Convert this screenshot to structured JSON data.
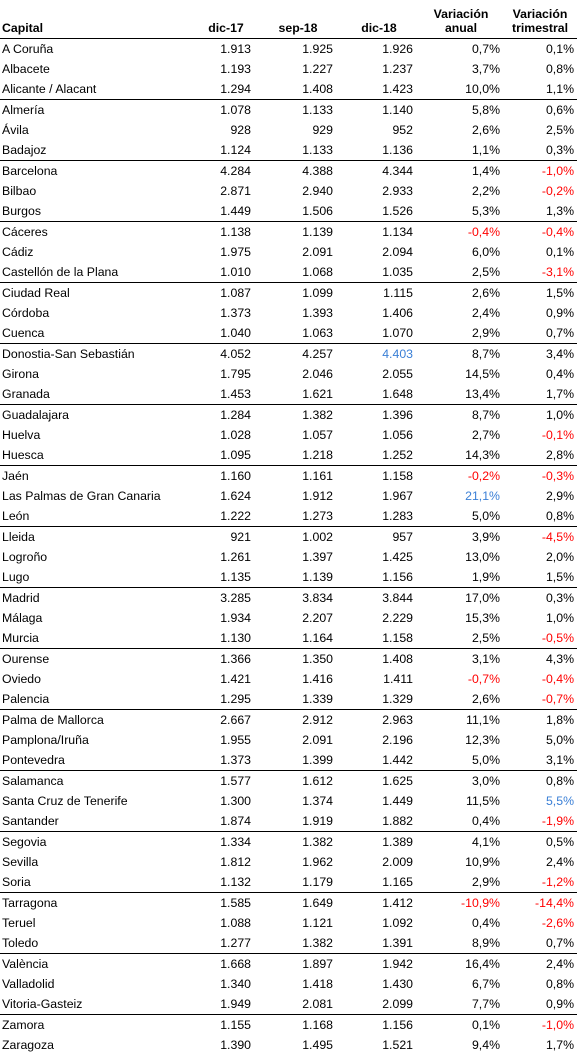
{
  "headers": {
    "capital": "Capital",
    "dic17": "dic-17",
    "sep18": "sep-18",
    "dic18": "dic-18",
    "var_anual": [
      "Variación",
      "anual"
    ],
    "var_trimestral": [
      "Variación",
      "trimestral"
    ]
  },
  "colors": {
    "negative": "#ff0000",
    "highlight": "#3a7fd6"
  },
  "rows": [
    {
      "capital": "A Coruña",
      "dic17": "1.913",
      "sep18": "1.925",
      "dic18": "1.926",
      "anual": "0,7%",
      "trim": "0,1%",
      "group_start": true
    },
    {
      "capital": "Albacete",
      "dic17": "1.193",
      "sep18": "1.227",
      "dic18": "1.237",
      "anual": "3,7%",
      "trim": "0,8%"
    },
    {
      "capital": "Alicante / Alacant",
      "dic17": "1.294",
      "sep18": "1.408",
      "dic18": "1.423",
      "anual": "10,0%",
      "trim": "1,1%"
    },
    {
      "capital": "Almería",
      "dic17": "1.078",
      "sep18": "1.133",
      "dic18": "1.140",
      "anual": "5,8%",
      "trim": "0,6%",
      "group_start": true
    },
    {
      "capital": "Ávila",
      "dic17": "928",
      "sep18": "929",
      "dic18": "952",
      "anual": "2,6%",
      "trim": "2,5%"
    },
    {
      "capital": "Badajoz",
      "dic17": "1.124",
      "sep18": "1.133",
      "dic18": "1.136",
      "anual": "1,1%",
      "trim": "0,3%"
    },
    {
      "capital": "Barcelona",
      "dic17": "4.284",
      "sep18": "4.388",
      "dic18": "4.344",
      "anual": "1,4%",
      "trim": "-1,0%",
      "trim_neg": true,
      "group_start": true
    },
    {
      "capital": "Bilbao",
      "dic17": "2.871",
      "sep18": "2.940",
      "dic18": "2.933",
      "anual": "2,2%",
      "trim": "-0,2%",
      "trim_neg": true
    },
    {
      "capital": "Burgos",
      "dic17": "1.449",
      "sep18": "1.506",
      "dic18": "1.526",
      "anual": "5,3%",
      "trim": "1,3%"
    },
    {
      "capital": "Cáceres",
      "dic17": "1.138",
      "sep18": "1.139",
      "dic18": "1.134",
      "anual": "-0,4%",
      "trim": "-0,4%",
      "anual_neg": true,
      "trim_neg": true,
      "group_start": true
    },
    {
      "capital": "Cádiz",
      "dic17": "1.975",
      "sep18": "2.091",
      "dic18": "2.094",
      "anual": "6,0%",
      "trim": "0,1%"
    },
    {
      "capital": "Castellón de la Plana",
      "dic17": "1.010",
      "sep18": "1.068",
      "dic18": "1.035",
      "anual": "2,5%",
      "trim": "-3,1%",
      "trim_neg": true
    },
    {
      "capital": "Ciudad Real",
      "dic17": "1.087",
      "sep18": "1.099",
      "dic18": "1.115",
      "anual": "2,6%",
      "trim": "1,5%",
      "group_start": true
    },
    {
      "capital": "Córdoba",
      "dic17": "1.373",
      "sep18": "1.393",
      "dic18": "1.406",
      "anual": "2,4%",
      "trim": "0,9%"
    },
    {
      "capital": "Cuenca",
      "dic17": "1.040",
      "sep18": "1.063",
      "dic18": "1.070",
      "anual": "2,9%",
      "trim": "0,7%"
    },
    {
      "capital": "Donostia-San Sebastián",
      "dic17": "4.052",
      "sep18": "4.257",
      "dic18": "4.403",
      "anual": "8,7%",
      "trim": "3,4%",
      "dic18_hl": true,
      "group_start": true
    },
    {
      "capital": "Girona",
      "dic17": "1.795",
      "sep18": "2.046",
      "dic18": "2.055",
      "anual": "14,5%",
      "trim": "0,4%"
    },
    {
      "capital": "Granada",
      "dic17": "1.453",
      "sep18": "1.621",
      "dic18": "1.648",
      "anual": "13,4%",
      "trim": "1,7%"
    },
    {
      "capital": "Guadalajara",
      "dic17": "1.284",
      "sep18": "1.382",
      "dic18": "1.396",
      "anual": "8,7%",
      "trim": "1,0%",
      "group_start": true
    },
    {
      "capital": "Huelva",
      "dic17": "1.028",
      "sep18": "1.057",
      "dic18": "1.056",
      "anual": "2,7%",
      "trim": "-0,1%",
      "trim_neg": true
    },
    {
      "capital": "Huesca",
      "dic17": "1.095",
      "sep18": "1.218",
      "dic18": "1.252",
      "anual": "14,3%",
      "trim": "2,8%"
    },
    {
      "capital": "Jaén",
      "dic17": "1.160",
      "sep18": "1.161",
      "dic18": "1.158",
      "anual": "-0,2%",
      "trim": "-0,3%",
      "anual_neg": true,
      "trim_neg": true,
      "group_start": true
    },
    {
      "capital": "Las Palmas de Gran Canaria",
      "dic17": "1.624",
      "sep18": "1.912",
      "dic18": "1.967",
      "anual": "21,1%",
      "trim": "2,9%",
      "anual_hl": true
    },
    {
      "capital": "León",
      "dic17": "1.222",
      "sep18": "1.273",
      "dic18": "1.283",
      "anual": "5,0%",
      "trim": "0,8%"
    },
    {
      "capital": "Lleida",
      "dic17": "921",
      "sep18": "1.002",
      "dic18": "957",
      "anual": "3,9%",
      "trim": "-4,5%",
      "trim_neg": true,
      "group_start": true
    },
    {
      "capital": "Logroño",
      "dic17": "1.261",
      "sep18": "1.397",
      "dic18": "1.425",
      "anual": "13,0%",
      "trim": "2,0%"
    },
    {
      "capital": "Lugo",
      "dic17": "1.135",
      "sep18": "1.139",
      "dic18": "1.156",
      "anual": "1,9%",
      "trim": "1,5%"
    },
    {
      "capital": "Madrid",
      "dic17": "3.285",
      "sep18": "3.834",
      "dic18": "3.844",
      "anual": "17,0%",
      "trim": "0,3%",
      "group_start": true
    },
    {
      "capital": "Málaga",
      "dic17": "1.934",
      "sep18": "2.207",
      "dic18": "2.229",
      "anual": "15,3%",
      "trim": "1,0%"
    },
    {
      "capital": "Murcia",
      "dic17": "1.130",
      "sep18": "1.164",
      "dic18": "1.158",
      "anual": "2,5%",
      "trim": "-0,5%",
      "trim_neg": true
    },
    {
      "capital": "Ourense",
      "dic17": "1.366",
      "sep18": "1.350",
      "dic18": "1.408",
      "anual": "3,1%",
      "trim": "4,3%",
      "group_start": true
    },
    {
      "capital": "Oviedo",
      "dic17": "1.421",
      "sep18": "1.416",
      "dic18": "1.411",
      "anual": "-0,7%",
      "trim": "-0,4%",
      "anual_neg": true,
      "trim_neg": true
    },
    {
      "capital": "Palencia",
      "dic17": "1.295",
      "sep18": "1.339",
      "dic18": "1.329",
      "anual": "2,6%",
      "trim": "-0,7%",
      "trim_neg": true
    },
    {
      "capital": "Palma de Mallorca",
      "dic17": "2.667",
      "sep18": "2.912",
      "dic18": "2.963",
      "anual": "11,1%",
      "trim": "1,8%",
      "group_start": true
    },
    {
      "capital": "Pamplona/Iruña",
      "dic17": "1.955",
      "sep18": "2.091",
      "dic18": "2.196",
      "anual": "12,3%",
      "trim": "5,0%"
    },
    {
      "capital": "Pontevedra",
      "dic17": "1.373",
      "sep18": "1.399",
      "dic18": "1.442",
      "anual": "5,0%",
      "trim": "3,1%"
    },
    {
      "capital": "Salamanca",
      "dic17": "1.577",
      "sep18": "1.612",
      "dic18": "1.625",
      "anual": "3,0%",
      "trim": "0,8%",
      "group_start": true
    },
    {
      "capital": "Santa Cruz de Tenerife",
      "dic17": "1.300",
      "sep18": "1.374",
      "dic18": "1.449",
      "anual": "11,5%",
      "trim": "5,5%",
      "trim_hl": true
    },
    {
      "capital": "Santander",
      "dic17": "1.874",
      "sep18": "1.919",
      "dic18": "1.882",
      "anual": "0,4%",
      "trim": "-1,9%",
      "trim_neg": true
    },
    {
      "capital": "Segovia",
      "dic17": "1.334",
      "sep18": "1.382",
      "dic18": "1.389",
      "anual": "4,1%",
      "trim": "0,5%",
      "group_start": true
    },
    {
      "capital": "Sevilla",
      "dic17": "1.812",
      "sep18": "1.962",
      "dic18": "2.009",
      "anual": "10,9%",
      "trim": "2,4%"
    },
    {
      "capital": "Soria",
      "dic17": "1.132",
      "sep18": "1.179",
      "dic18": "1.165",
      "anual": "2,9%",
      "trim": "-1,2%",
      "trim_neg": true
    },
    {
      "capital": "Tarragona",
      "dic17": "1.585",
      "sep18": "1.649",
      "dic18": "1.412",
      "anual": "-10,9%",
      "trim": "-14,4%",
      "anual_neg": true,
      "trim_neg": true,
      "group_start": true
    },
    {
      "capital": "Teruel",
      "dic17": "1.088",
      "sep18": "1.121",
      "dic18": "1.092",
      "anual": "0,4%",
      "trim": "-2,6%",
      "trim_neg": true
    },
    {
      "capital": "Toledo",
      "dic17": "1.277",
      "sep18": "1.382",
      "dic18": "1.391",
      "anual": "8,9%",
      "trim": "0,7%"
    },
    {
      "capital": "València",
      "dic17": "1.668",
      "sep18": "1.897",
      "dic18": "1.942",
      "anual": "16,4%",
      "trim": "2,4%",
      "group_start": true
    },
    {
      "capital": "Valladolid",
      "dic17": "1.340",
      "sep18": "1.418",
      "dic18": "1.430",
      "anual": "6,7%",
      "trim": "0,8%"
    },
    {
      "capital": "Vitoria-Gasteiz",
      "dic17": "1.949",
      "sep18": "2.081",
      "dic18": "2.099",
      "anual": "7,7%",
      "trim": "0,9%"
    },
    {
      "capital": "Zamora",
      "dic17": "1.155",
      "sep18": "1.168",
      "dic18": "1.156",
      "anual": "0,1%",
      "trim": "-1,0%",
      "trim_neg": true,
      "group_start": true
    },
    {
      "capital": "Zaragoza",
      "dic17": "1.390",
      "sep18": "1.495",
      "dic18": "1.521",
      "anual": "9,4%",
      "trim": "1,7%"
    }
  ]
}
